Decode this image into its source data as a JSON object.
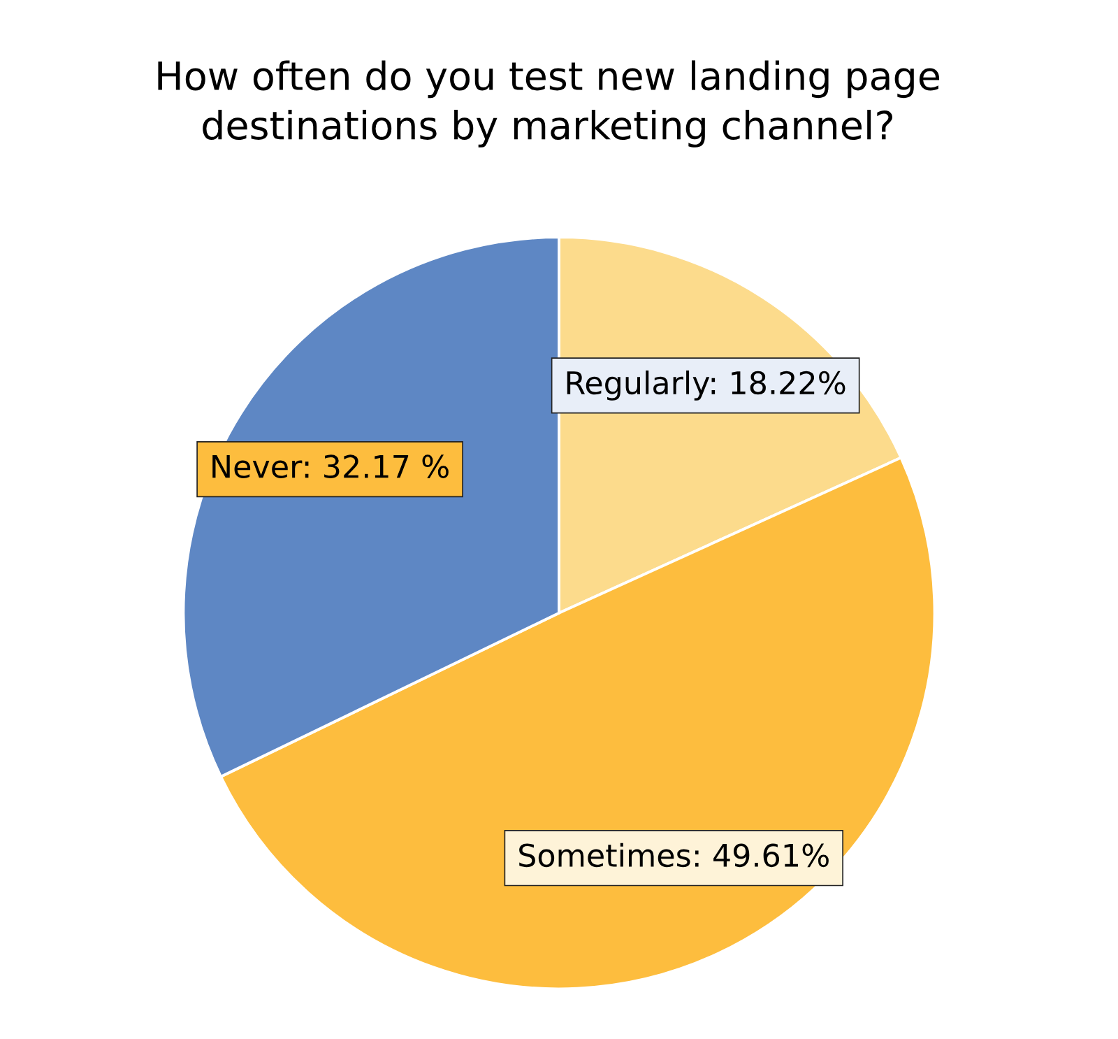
{
  "chart_data": {
    "type": "pie",
    "title": "How often do you test new landing page\ndestinations by marketing channel?",
    "categories": [
      "Regularly",
      "Sometimes",
      "Never"
    ],
    "values": [
      18.22,
      49.61,
      32.17
    ],
    "colors": [
      "#fcdb8c",
      "#fdbd3e",
      "#5e87c4"
    ],
    "value_labels": [
      "18.22%",
      "49.61%",
      "32.17 %"
    ]
  }
}
